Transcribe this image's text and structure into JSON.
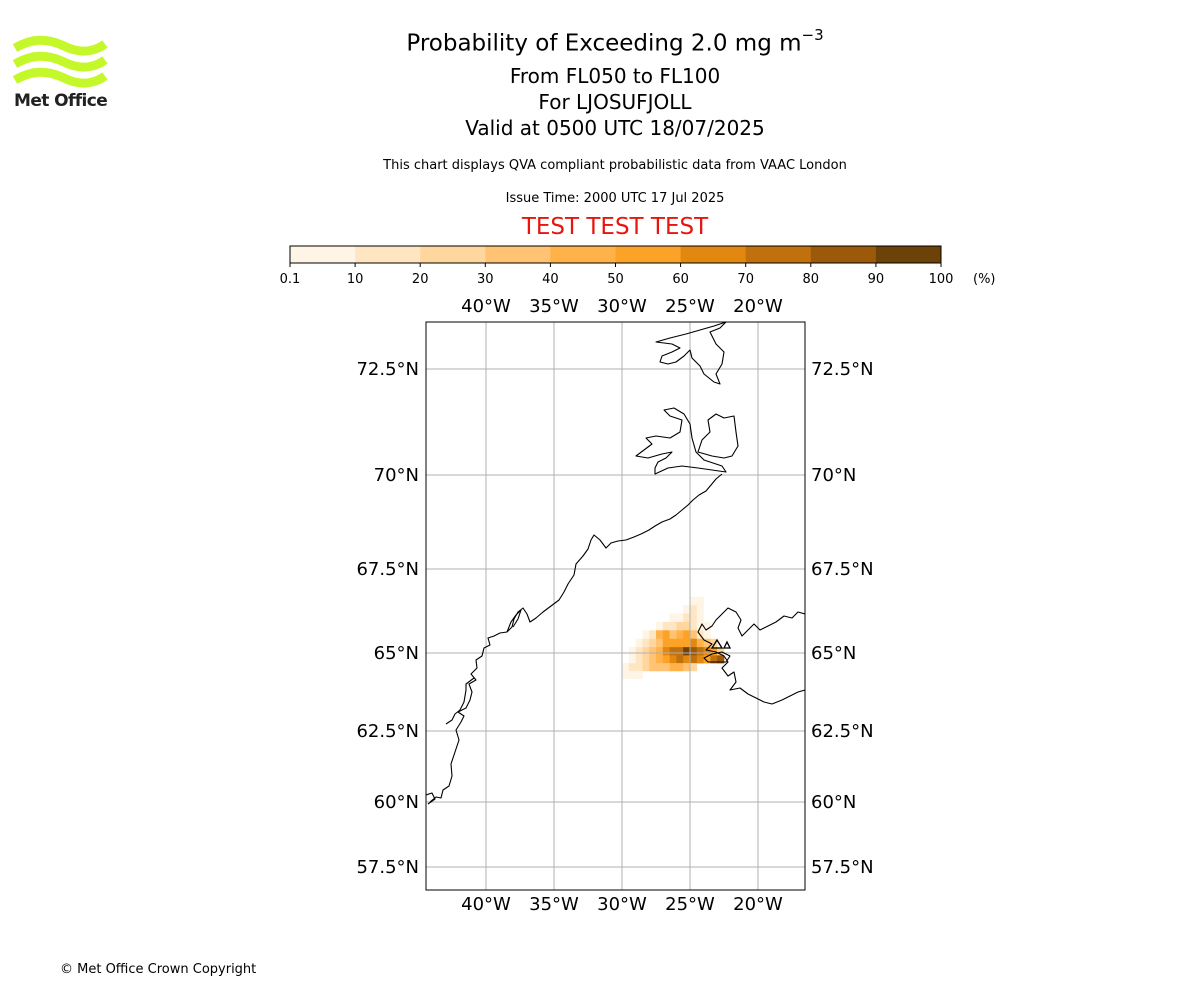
{
  "header": {
    "title_prefix": "Probability of Exceeding 2.0 mg m",
    "title_exponent": "−3",
    "line_levels": "From FL050 to FL100",
    "line_location": "For LJOSUFJOLL",
    "line_valid": "Valid at 0500 UTC 18/07/2025",
    "line_source": "This chart displays QVA compliant probabilistic data from VAAC London",
    "line_issue": "Issue Time: 2000 UTC 17 Jul 2025",
    "line_test": "TEST TEST TEST"
  },
  "logo": {
    "text": "Met Office",
    "color": "#c4f82a",
    "icon": "met-office-wave-logo"
  },
  "colorbar": {
    "bounds": [
      "0.1",
      "10",
      "20",
      "30",
      "40",
      "50",
      "60",
      "70",
      "80",
      "90",
      "100"
    ],
    "colors": [
      "#fff5e6",
      "#ffe6c2",
      "#ffd79e",
      "#ffc373",
      "#ffb24a",
      "#fca327",
      "#e2870f",
      "#c0700c",
      "#9c590a",
      "#6d4208"
    ],
    "unit": "(%)"
  },
  "map": {
    "lon_labels": [
      "40°W",
      "35°W",
      "30°W",
      "25°W",
      "20°W"
    ],
    "lon_values": [
      -40,
      -35,
      -30,
      -25,
      -20
    ],
    "lat_labels": [
      "72.5°N",
      "70°N",
      "67.5°N",
      "65°N",
      "62.5°N",
      "60°N",
      "57.5°N"
    ],
    "lat_values": [
      72.5,
      70,
      67.5,
      65,
      62.5,
      60,
      57.5
    ],
    "extent": {
      "lon_min": -44.5,
      "lon_max": -16.5,
      "lat_min": 56.8,
      "lat_max": 73.7
    },
    "grid": true,
    "volcano": "LJOSUFJOLL",
    "plume_cells": [
      [
        -24.75,
        66.55,
        1
      ],
      [
        -24.25,
        66.55,
        1
      ],
      [
        -25.25,
        66.3,
        1
      ],
      [
        -24.75,
        66.3,
        2
      ],
      [
        -24.25,
        66.3,
        1
      ],
      [
        -26.25,
        66.05,
        1
      ],
      [
        -25.75,
        66.05,
        1
      ],
      [
        -25.25,
        66.05,
        2
      ],
      [
        -24.75,
        66.05,
        2
      ],
      [
        -24.25,
        66.05,
        1
      ],
      [
        -27.25,
        65.8,
        1
      ],
      [
        -26.75,
        65.8,
        2
      ],
      [
        -26.25,
        65.8,
        2
      ],
      [
        -25.75,
        65.8,
        3
      ],
      [
        -25.25,
        65.8,
        3
      ],
      [
        -24.75,
        65.8,
        2
      ],
      [
        -24.25,
        65.8,
        1
      ],
      [
        -23.75,
        65.8,
        1
      ],
      [
        -28.25,
        65.55,
        1
      ],
      [
        -27.75,
        65.55,
        2
      ],
      [
        -27.25,
        65.55,
        5
      ],
      [
        -26.75,
        65.55,
        6
      ],
      [
        -26.25,
        65.55,
        4
      ],
      [
        -25.75,
        65.55,
        5
      ],
      [
        -25.25,
        65.55,
        6
      ],
      [
        -24.75,
        65.55,
        4
      ],
      [
        -24.25,
        65.55,
        2
      ],
      [
        -23.75,
        65.55,
        1
      ],
      [
        -28.75,
        65.3,
        1
      ],
      [
        -28.25,
        65.3,
        2
      ],
      [
        -27.75,
        65.3,
        3
      ],
      [
        -27.25,
        65.3,
        4
      ],
      [
        -26.75,
        65.3,
        6
      ],
      [
        -26.25,
        65.3,
        6
      ],
      [
        -25.75,
        65.3,
        6
      ],
      [
        -25.25,
        65.3,
        6
      ],
      [
        -24.75,
        65.3,
        7
      ],
      [
        -24.25,
        65.3,
        5
      ],
      [
        -23.75,
        65.3,
        4
      ],
      [
        -23.25,
        65.3,
        3
      ],
      [
        -29.25,
        65.05,
        1
      ],
      [
        -28.75,
        65.05,
        2
      ],
      [
        -28.25,
        65.05,
        3
      ],
      [
        -27.75,
        65.05,
        4
      ],
      [
        -27.25,
        65.05,
        5
      ],
      [
        -26.75,
        65.05,
        7
      ],
      [
        -26.25,
        65.05,
        8
      ],
      [
        -25.75,
        65.05,
        8
      ],
      [
        -25.25,
        65.05,
        10
      ],
      [
        -24.75,
        65.05,
        9
      ],
      [
        -24.25,
        65.05,
        8
      ],
      [
        -23.75,
        65.05,
        7
      ],
      [
        -23.25,
        65.05,
        6
      ],
      [
        -22.75,
        65.05,
        3
      ],
      [
        -29.25,
        64.8,
        1
      ],
      [
        -28.75,
        64.8,
        2
      ],
      [
        -28.25,
        64.8,
        3
      ],
      [
        -27.75,
        64.8,
        4
      ],
      [
        -27.25,
        64.8,
        5
      ],
      [
        -26.75,
        64.8,
        6
      ],
      [
        -26.25,
        64.8,
        7
      ],
      [
        -25.75,
        64.8,
        8
      ],
      [
        -25.25,
        64.8,
        7
      ],
      [
        -24.75,
        64.8,
        8
      ],
      [
        -24.25,
        64.8,
        7
      ],
      [
        -23.75,
        64.8,
        6
      ],
      [
        -23.25,
        64.8,
        8
      ],
      [
        -22.75,
        64.8,
        9
      ],
      [
        -29.75,
        64.55,
        1
      ],
      [
        -29.25,
        64.55,
        2
      ],
      [
        -28.75,
        64.55,
        2
      ],
      [
        -28.25,
        64.55,
        3
      ],
      [
        -27.75,
        64.55,
        4
      ],
      [
        -27.25,
        64.55,
        4
      ],
      [
        -26.75,
        64.55,
        4
      ],
      [
        -26.25,
        64.55,
        5
      ],
      [
        -25.75,
        64.55,
        5
      ],
      [
        -25.25,
        64.55,
        4
      ],
      [
        -24.75,
        64.55,
        3
      ],
      [
        -29.75,
        64.3,
        1
      ],
      [
        -29.25,
        64.3,
        1
      ],
      [
        -28.75,
        64.3,
        1
      ]
    ]
  },
  "footer": {
    "copyright": "© Met Office Crown Copyright"
  }
}
